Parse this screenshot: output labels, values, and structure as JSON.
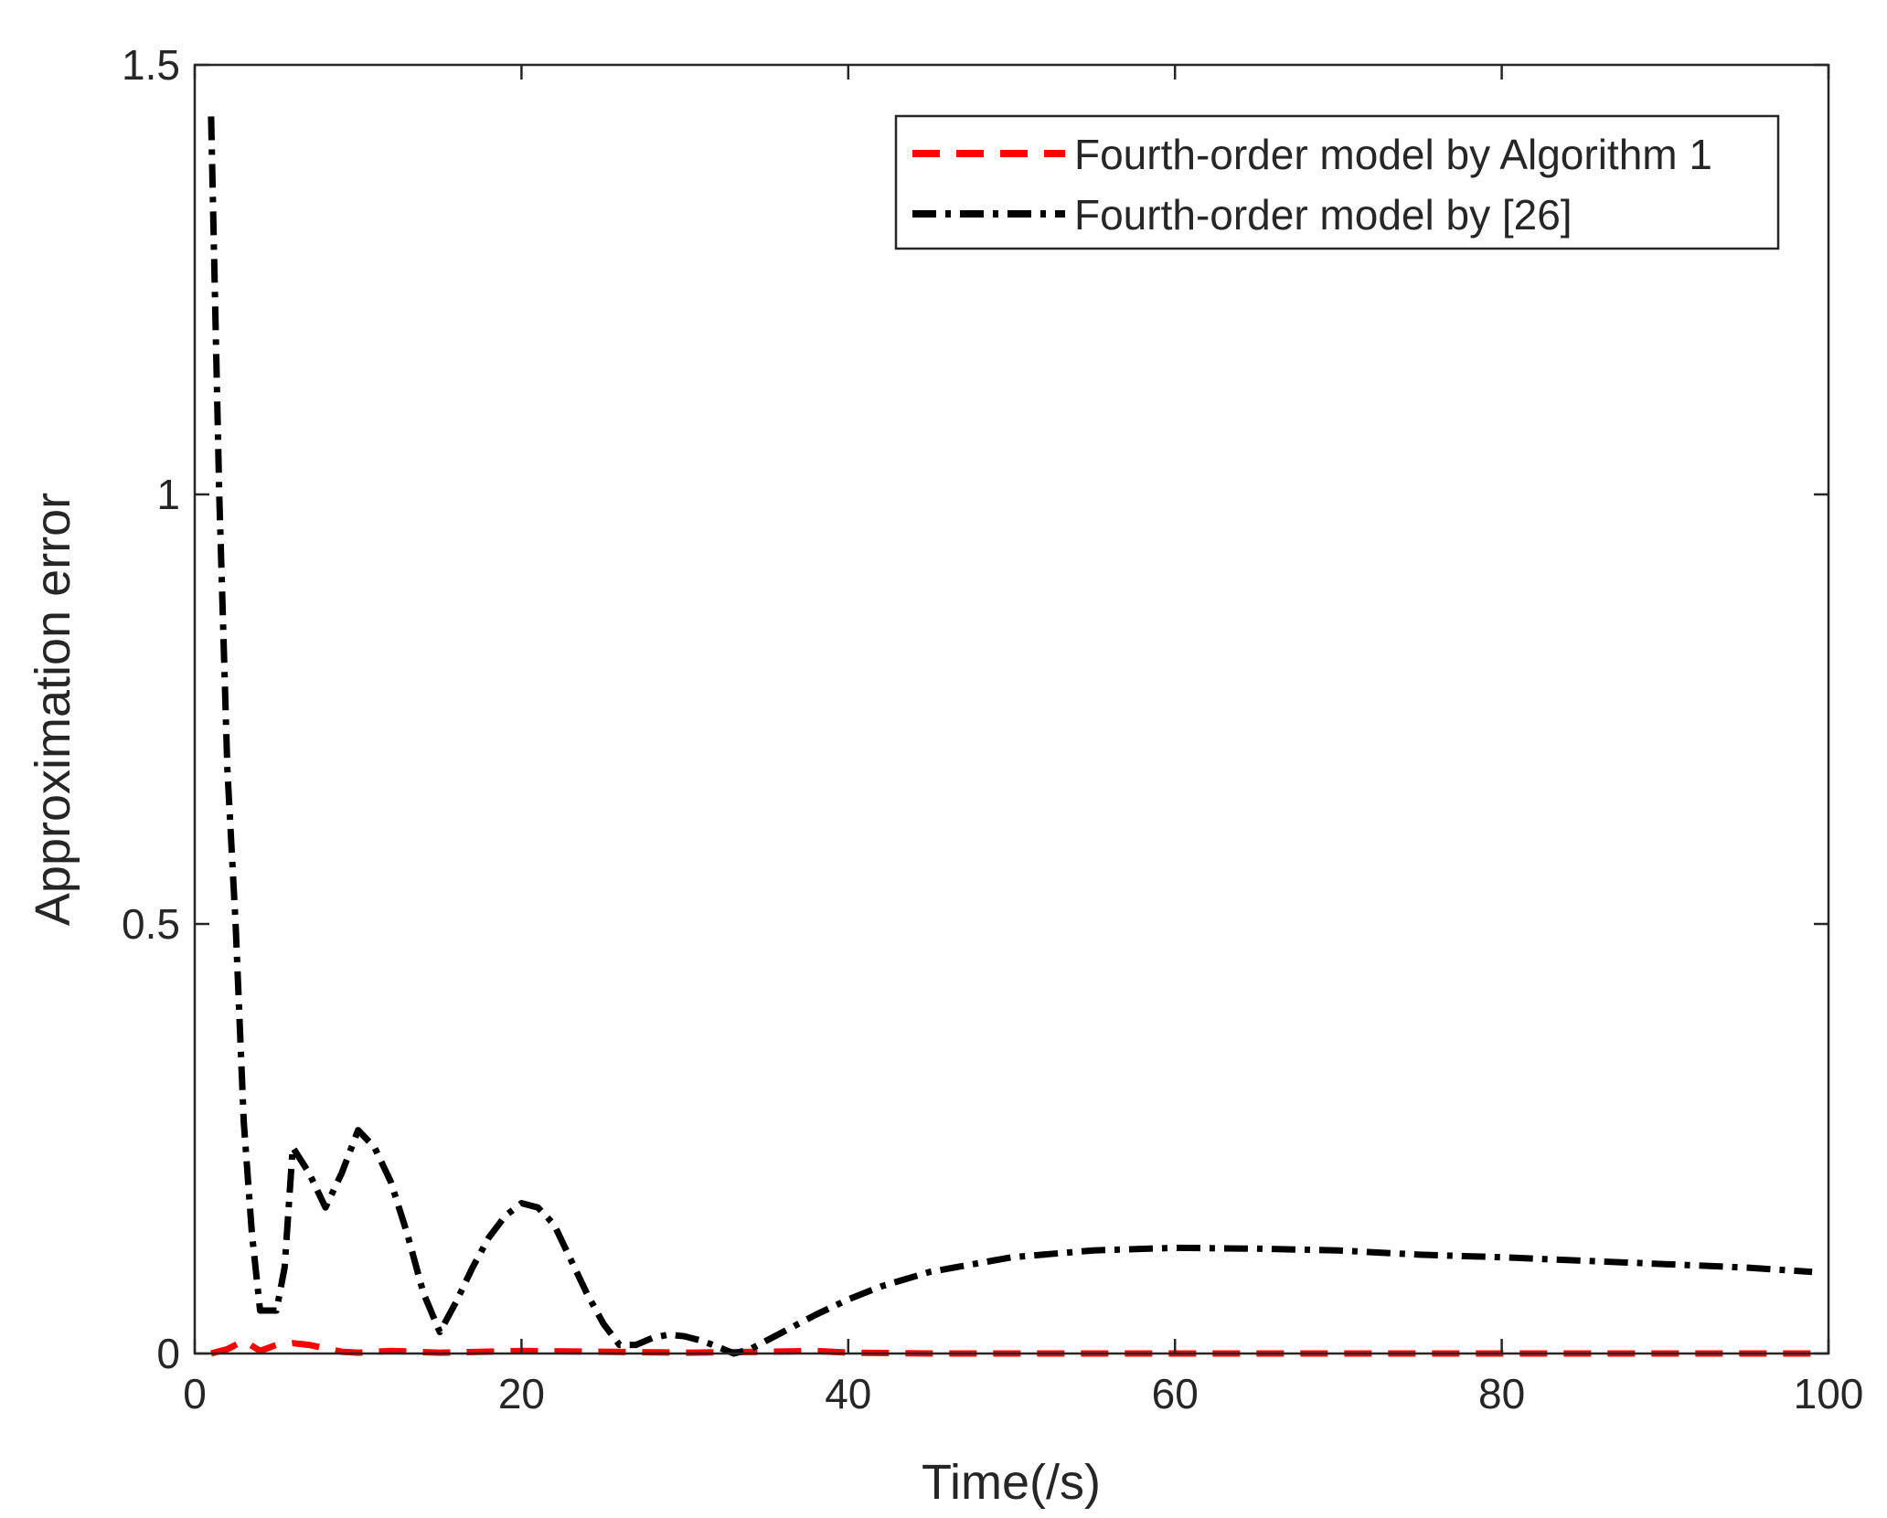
{
  "chart_data": {
    "type": "line",
    "xlabel": "Time(/s)",
    "ylabel": "Approximation error",
    "xlim": [
      0,
      100
    ],
    "ylim": [
      0,
      1.5
    ],
    "xticks": [
      0,
      20,
      40,
      60,
      80,
      100
    ],
    "xtick_labels": [
      "0",
      "20",
      "40",
      "60",
      "80",
      "100"
    ],
    "yticks": [
      0,
      0.5,
      1,
      1.5
    ],
    "ytick_labels": [
      "0",
      "0.5",
      "1",
      "1.5"
    ],
    "grid": false,
    "legend_position": "top-right",
    "series": [
      {
        "name": "Fourth-order model by Algorithm 1",
        "color": "#ff0000",
        "line_style": "dashed",
        "x": [
          1,
          2,
          3,
          4,
          5,
          6,
          7,
          8,
          9,
          10,
          12,
          15,
          20,
          25,
          30,
          35,
          38,
          40,
          45,
          50,
          60,
          70,
          80,
          90,
          99
        ],
        "y": [
          0.0,
          0.005,
          0.015,
          0.003,
          0.01,
          0.012,
          0.01,
          0.006,
          0.002,
          0.001,
          0.003,
          0.001,
          0.003,
          0.002,
          0.001,
          0.002,
          0.003,
          0.001,
          0.0,
          0.0,
          0.0,
          0.0,
          0.0,
          0.0,
          0.0
        ]
      },
      {
        "name": "Fourth-order model by [26]",
        "color": "#000000",
        "line_style": "dashdot",
        "x": [
          1,
          1.5,
          2,
          2.5,
          3,
          3.5,
          4,
          4.5,
          5,
          5.5,
          6,
          7,
          8,
          9,
          10,
          11,
          12,
          13,
          14,
          15,
          16,
          17,
          18,
          19,
          20,
          21,
          22,
          23,
          24,
          25,
          26,
          27,
          28,
          29,
          30,
          31,
          32,
          33,
          34,
          36,
          38,
          40,
          42,
          45,
          50,
          55,
          60,
          65,
          70,
          75,
          80,
          85,
          90,
          95,
          99
        ],
        "y": [
          1.44,
          1.0,
          0.68,
          0.5,
          0.27,
          0.14,
          0.05,
          0.05,
          0.05,
          0.1,
          0.24,
          0.21,
          0.17,
          0.21,
          0.26,
          0.24,
          0.2,
          0.14,
          0.07,
          0.025,
          0.06,
          0.1,
          0.135,
          0.16,
          0.175,
          0.17,
          0.15,
          0.11,
          0.07,
          0.035,
          0.01,
          0.01,
          0.018,
          0.022,
          0.02,
          0.015,
          0.008,
          0.0,
          0.005,
          0.025,
          0.045,
          0.063,
          0.078,
          0.095,
          0.112,
          0.12,
          0.123,
          0.122,
          0.12,
          0.115,
          0.112,
          0.108,
          0.104,
          0.1,
          0.095
        ]
      }
    ]
  }
}
